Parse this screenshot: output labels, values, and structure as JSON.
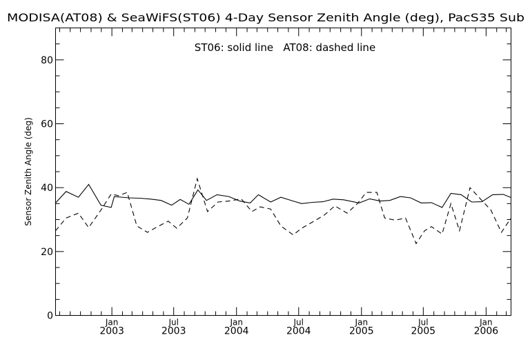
{
  "chart_data": {
    "type": "line",
    "title": "MODISA(AT08) & SeaWiFS(ST06) 4-Day Sensor Zenith Angle (deg), PacS35 Sub",
    "annotation": "ST06: solid line   AT08: dashed line",
    "ylabel": "Sensor Zenith Angle (deg)",
    "xlabel": "",
    "ylim": [
      0,
      90
    ],
    "yticks": [
      0,
      20,
      40,
      60,
      80
    ],
    "x_range": [
      "2002-07-20",
      "2006-03-15"
    ],
    "x_ticks": [
      {
        "date": "2003-01-01",
        "month": "Jan",
        "year": "2003"
      },
      {
        "date": "2003-07-01",
        "month": "Jul",
        "year": "2003"
      },
      {
        "date": "2004-01-01",
        "month": "Jan",
        "year": "2004"
      },
      {
        "date": "2004-07-01",
        "month": "Jul",
        "year": "2004"
      },
      {
        "date": "2005-01-01",
        "month": "Jan",
        "year": "2005"
      },
      {
        "date": "2005-07-01",
        "month": "Jul",
        "year": "2005"
      },
      {
        "date": "2006-01-01",
        "month": "Jan",
        "year": "2006"
      }
    ],
    "grid": false,
    "legend": "annotation at top",
    "series": [
      {
        "name": "ST06",
        "style": "solid",
        "color": "#000000",
        "x": [
          "2002-07-20",
          "2002-08-20",
          "2002-09-25",
          "2002-10-25",
          "2002-11-30",
          "2002-12-30",
          "2003-01-08",
          "2003-02-20",
          "2003-03-25",
          "2003-04-25",
          "2003-05-25",
          "2003-06-25",
          "2003-07-20",
          "2003-08-15",
          "2003-09-10",
          "2003-10-05",
          "2003-11-05",
          "2003-12-10",
          "2004-01-10",
          "2004-02-10",
          "2004-03-05",
          "2004-04-10",
          "2004-05-10",
          "2004-06-15",
          "2004-07-10",
          "2004-08-10",
          "2004-09-10",
          "2004-10-10",
          "2004-11-10",
          "2004-12-25",
          "2005-01-25",
          "2005-02-25",
          "2005-03-25",
          "2005-04-25",
          "2005-05-25",
          "2005-06-25",
          "2005-07-25",
          "2005-08-25",
          "2005-09-20",
          "2005-10-20",
          "2005-11-20",
          "2005-12-20",
          "2006-01-20",
          "2006-02-20",
          "2006-03-15"
        ],
        "y": [
          35.2,
          38.8,
          37.0,
          41.0,
          34.5,
          33.8,
          37.2,
          36.8,
          36.7,
          36.4,
          36.0,
          34.5,
          36.3,
          34.8,
          39.3,
          36.0,
          37.8,
          37.2,
          35.8,
          35.2,
          37.8,
          35.5,
          37.0,
          35.8,
          35.0,
          35.4,
          35.6,
          36.4,
          36.2,
          35.2,
          36.5,
          35.8,
          36.0,
          37.2,
          36.8,
          35.2,
          35.3,
          33.8,
          38.2,
          37.8,
          35.5,
          35.6,
          37.8,
          37.9,
          36.9
        ]
      },
      {
        "name": "AT08",
        "style": "dashed",
        "color": "#000000",
        "x": [
          "2002-07-20",
          "2002-08-20",
          "2002-09-25",
          "2002-10-25",
          "2002-11-30",
          "2002-12-30",
          "2003-01-20",
          "2003-02-15",
          "2003-03-15",
          "2003-04-15",
          "2003-05-15",
          "2003-06-15",
          "2003-07-10",
          "2003-08-10",
          "2003-09-08",
          "2003-10-08",
          "2003-11-08",
          "2003-12-10",
          "2004-01-15",
          "2004-02-15",
          "2004-03-10",
          "2004-04-10",
          "2004-05-10",
          "2004-06-15",
          "2004-07-10",
          "2004-08-15",
          "2004-09-15",
          "2004-10-15",
          "2004-11-20",
          "2004-12-20",
          "2005-01-15",
          "2005-02-15",
          "2005-03-10",
          "2005-04-10",
          "2005-05-10",
          "2005-06-10",
          "2005-07-05",
          "2005-07-25",
          "2005-08-25",
          "2005-09-20",
          "2005-10-15",
          "2005-11-15",
          "2005-12-15",
          "2006-01-15",
          "2006-02-15",
          "2006-03-15"
        ],
        "y": [
          26.5,
          30.5,
          32.0,
          27.5,
          33.0,
          38.0,
          37.5,
          38.5,
          28.0,
          26.0,
          27.8,
          29.5,
          27.3,
          30.5,
          42.8,
          32.5,
          35.5,
          35.8,
          36.5,
          32.5,
          34.0,
          33.3,
          28.0,
          25.2,
          27.3,
          29.5,
          31.5,
          34.3,
          32.0,
          35.0,
          38.5,
          38.5,
          30.5,
          29.8,
          30.5,
          22.5,
          26.5,
          27.8,
          25.5,
          35.0,
          26.5,
          40.0,
          36.5,
          33.0,
          26.0,
          30.5
        ]
      }
    ]
  }
}
